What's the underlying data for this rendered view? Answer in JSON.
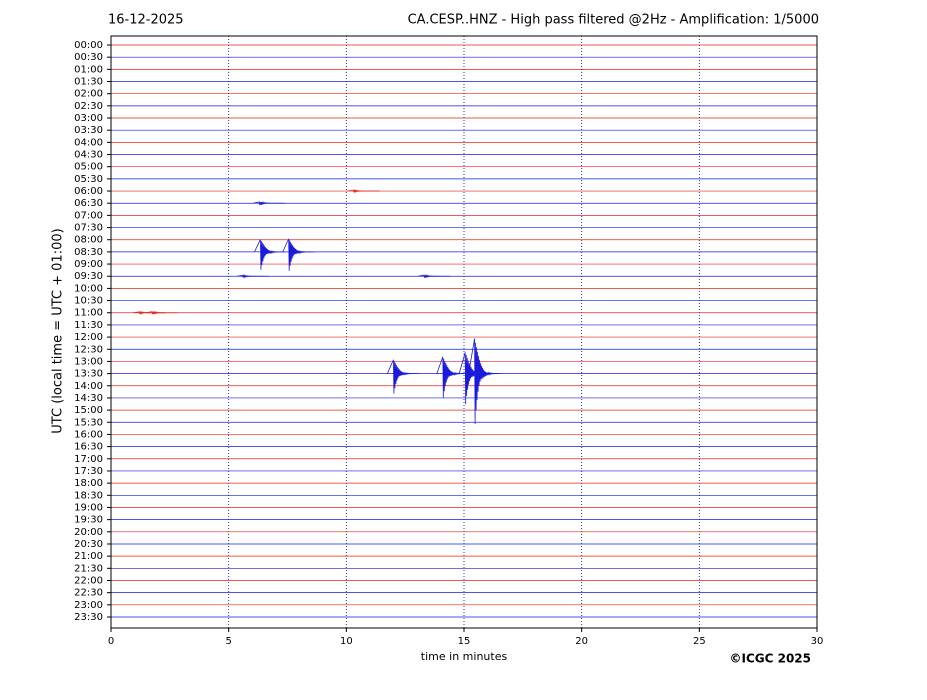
{
  "chart_data": {
    "type": "helicorder",
    "title_left": "16-12-2025",
    "title": "CA.CESP..HNZ - High pass filtered @2Hz - Amplification: 1/5000",
    "y_label": "UTC (local time = UTC + 01:00)",
    "x_label": "time in minutes",
    "copyright": "©ICGC 2025",
    "categories": [
      "00:00",
      "00:30",
      "01:00",
      "01:30",
      "02:00",
      "02:30",
      "03:00",
      "03:30",
      "04:00",
      "04:30",
      "05:00",
      "05:30",
      "06:00",
      "06:30",
      "07:00",
      "07:30",
      "08:00",
      "08:30",
      "09:00",
      "09:30",
      "10:00",
      "10:30",
      "11:00",
      "11:30",
      "12:00",
      "12:30",
      "13:00",
      "13:30",
      "14:00",
      "14:30",
      "15:00",
      "15:30",
      "16:00",
      "16:30",
      "17:00",
      "17:30",
      "18:00",
      "18:30",
      "19:00",
      "19:30",
      "20:00",
      "20:30",
      "21:00",
      "21:30",
      "22:00",
      "22:30",
      "23:00",
      "23:30"
    ],
    "colors": [
      "#e8241c",
      "#1a1adc"
    ],
    "events": [
      {
        "row": 12,
        "minute": 10.3,
        "amplitude": 0.12
      },
      {
        "row": 13,
        "minute": 6.3,
        "amplitude": 0.18
      },
      {
        "row": 17,
        "minute": 6.35,
        "amplitude": 1.7
      },
      {
        "row": 17,
        "minute": 7.55,
        "amplitude": 1.8
      },
      {
        "row": 19,
        "minute": 5.6,
        "amplitude": 0.12
      },
      {
        "row": 19,
        "minute": 13.3,
        "amplitude": 0.15
      },
      {
        "row": 22,
        "minute": 1.2,
        "amplitude": 0.12
      },
      {
        "row": 22,
        "minute": 1.75,
        "amplitude": 0.15
      },
      {
        "row": 27,
        "minute": 12.0,
        "amplitude": 1.9
      },
      {
        "row": 27,
        "minute": 14.1,
        "amplitude": 2.3
      },
      {
        "row": 27,
        "minute": 15.05,
        "amplitude": 2.9
      },
      {
        "row": 27,
        "minute": 15.45,
        "amplitude": 4.8
      }
    ],
    "xlim": [
      0,
      30
    ],
    "xticks": [
      0,
      5,
      10,
      15,
      20,
      25,
      30
    ],
    "grid": true
  }
}
